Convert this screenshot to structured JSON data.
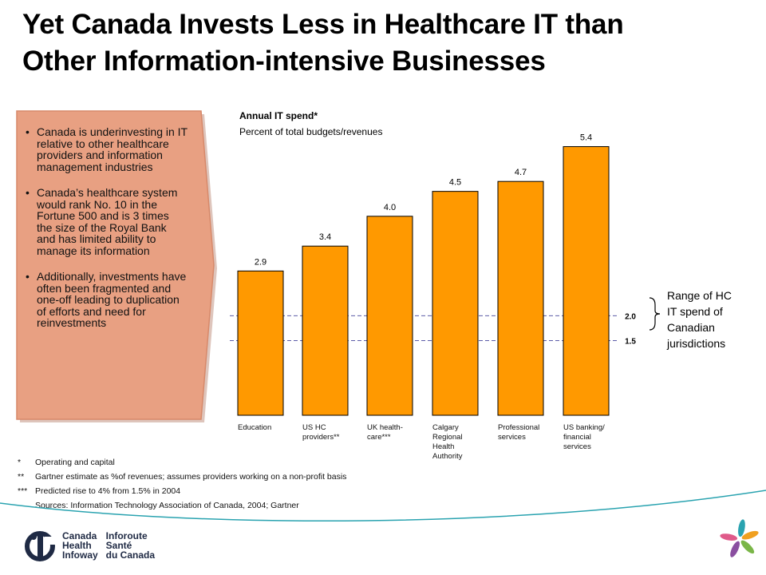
{
  "slide": {
    "title_line1": "Yet Canada Invests Less in Healthcare IT than",
    "title_line2": "Other Information-intensive Businesses"
  },
  "callout": {
    "bullets": [
      "Canada is underinvesting in IT relative to other healthcare providers and information management industries",
      "Canada’s healthcare system would rank No. 10 in the Fortune 500 and is 3 times the size of the Royal Bank and has limited ability to manage its information",
      "Additionally, investments have often been fragmented and one-off leading to duplication of efforts and need for reinvestments"
    ],
    "fill_color": "#e8a082",
    "border_color": "#d7896a"
  },
  "chart_data": {
    "type": "bar",
    "title": "Annual IT spend*",
    "subtitle": "Percent of total budgets/revenues",
    "categories": [
      [
        "Education"
      ],
      [
        "US HC",
        "providers**"
      ],
      [
        "UK health-",
        "care***"
      ],
      [
        "Calgary",
        "Regional",
        "Health",
        "Authority"
      ],
      [
        "Professional",
        "services"
      ],
      [
        "US banking/",
        "financial",
        "services"
      ]
    ],
    "values": [
      2.9,
      3.4,
      4.0,
      4.5,
      4.7,
      5.4
    ],
    "value_labels": [
      "2.9",
      "3.4",
      "4.0",
      "4.5",
      "4.7",
      "5.4"
    ],
    "ylim": [
      0,
      5.6
    ],
    "reference_lines": [
      {
        "value": 2.0,
        "label": "2.0"
      },
      {
        "value": 1.5,
        "label": "1.5"
      }
    ],
    "range_annotation": "Range of HC IT spend of Canadian jurisdictions",
    "bar_color": "#ff9900",
    "bar_edge": "#000000",
    "ref_line_color": "#5b5ba8"
  },
  "range_lines": [
    "Range of HC",
    "IT spend of",
    "Canadian",
    "jurisdictions"
  ],
  "footnotes": [
    {
      "mark": "*",
      "text": "Operating and capital"
    },
    {
      "mark": "**",
      "text": "Gartner estimate as %of revenues; assumes providers working on a non-profit basis"
    },
    {
      "mark": "***",
      "text": "Predicted rise to 4% from 1.5% in 2004"
    },
    {
      "mark": "",
      "text": "Sources:  Information Technology Association of Canada, 2004; Gartner"
    }
  ],
  "footer": {
    "logo_en": [
      "Canada",
      "Health",
      "Infoway"
    ],
    "logo_fr": [
      "Inforoute",
      "Santé",
      "du Canada"
    ],
    "logo_icon": "infoway-logo-icon",
    "corner_icon": "flower-icon",
    "accent": "#2aa3b0"
  }
}
